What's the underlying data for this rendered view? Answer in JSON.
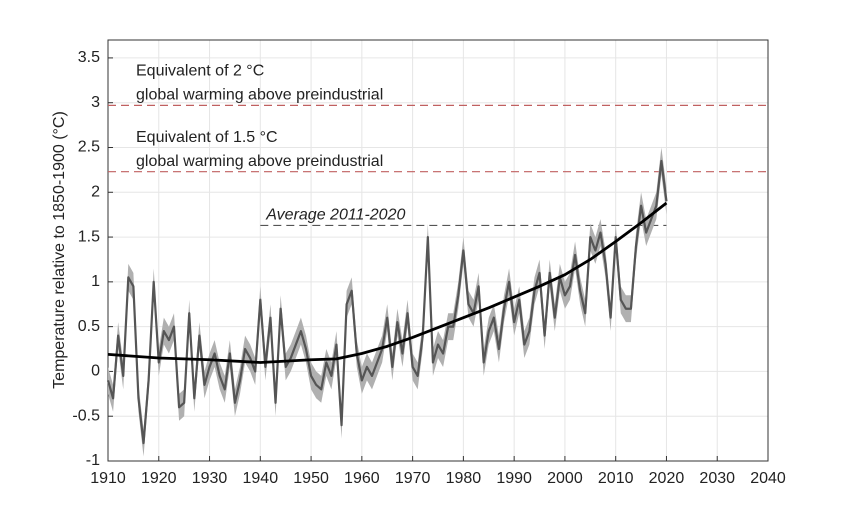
{
  "chart_data": {
    "type": "line",
    "ylabel": "Temperature relative to 1850-1900 (°C)",
    "xlim": [
      1910,
      2040
    ],
    "xticks": [
      1910,
      1920,
      1930,
      1940,
      1950,
      1960,
      1970,
      1980,
      1990,
      2000,
      2010,
      2020,
      2030,
      2040
    ],
    "ylim": [
      -1,
      3.7
    ],
    "yticks": [
      -1,
      -0.5,
      0,
      0.5,
      1,
      1.5,
      2,
      2.5,
      3,
      3.5
    ],
    "grid": true,
    "series": [
      {
        "color": "#555555",
        "band_color": "#b0b0b0",
        "error": 0.15,
        "x": [
          1910,
          1911,
          1912,
          1913,
          1914,
          1915,
          1916,
          1917,
          1918,
          1919,
          1920,
          1921,
          1922,
          1923,
          1924,
          1925,
          1926,
          1927,
          1928,
          1929,
          1930,
          1931,
          1932,
          1933,
          1934,
          1935,
          1936,
          1937,
          1938,
          1939,
          1940,
          1941,
          1942,
          1943,
          1944,
          1945,
          1946,
          1947,
          1948,
          1949,
          1950,
          1951,
          1952,
          1953,
          1954,
          1955,
          1956,
          1957,
          1958,
          1959,
          1960,
          1961,
          1962,
          1963,
          1964,
          1965,
          1966,
          1967,
          1968,
          1969,
          1970,
          1971,
          1972,
          1973,
          1974,
          1975,
          1976,
          1977,
          1978,
          1979,
          1980,
          1981,
          1982,
          1983,
          1984,
          1985,
          1986,
          1987,
          1988,
          1989,
          1990,
          1991,
          1992,
          1993,
          1994,
          1995,
          1996,
          1997,
          1998,
          1999,
          2000,
          2001,
          2002,
          2003,
          2004,
          2005,
          2006,
          2007,
          2008,
          2009,
          2010,
          2011,
          2012,
          2013,
          2014,
          2015,
          2016,
          2017,
          2018,
          2019,
          2020
        ],
        "values": [
          -0.1,
          -0.3,
          0.4,
          -0.05,
          1.05,
          0.95,
          -0.3,
          -0.8,
          -0.1,
          1.0,
          0.1,
          0.45,
          0.35,
          0.5,
          -0.4,
          -0.35,
          0.65,
          -0.3,
          0.4,
          -0.15,
          0.05,
          0.2,
          -0.05,
          -0.2,
          0.2,
          -0.35,
          -0.1,
          0.25,
          0.15,
          0.0,
          0.8,
          0.05,
          0.6,
          -0.35,
          0.7,
          0.05,
          0.15,
          0.3,
          0.45,
          0.25,
          -0.05,
          -0.15,
          -0.2,
          0.1,
          -0.05,
          0.3,
          -0.6,
          0.75,
          0.9,
          0.2,
          -0.1,
          0.05,
          -0.05,
          0.1,
          0.25,
          0.6,
          0.05,
          0.55,
          0.2,
          0.65,
          0.05,
          -0.05,
          0.4,
          1.5,
          0.1,
          0.3,
          0.2,
          0.5,
          0.5,
          0.85,
          1.35,
          0.75,
          0.65,
          0.95,
          0.1,
          0.45,
          0.6,
          0.25,
          0.7,
          1.0,
          0.55,
          0.8,
          0.3,
          0.45,
          0.9,
          1.1,
          0.4,
          1.1,
          0.6,
          1.05,
          0.85,
          0.95,
          1.3,
          0.9,
          0.65,
          1.5,
          1.35,
          1.55,
          1.2,
          0.6,
          1.5,
          0.8,
          0.7,
          0.7,
          1.4,
          1.85,
          1.55,
          1.7,
          1.85,
          2.35,
          1.9
        ]
      },
      {
        "color": "#000000",
        "x": [
          1910,
          1920,
          1930,
          1940,
          1950,
          1955,
          1960,
          1965,
          1970,
          1975,
          1980,
          1985,
          1990,
          1995,
          2000,
          2005,
          2010,
          2015,
          2020
        ],
        "values": [
          0.19,
          0.15,
          0.13,
          0.1,
          0.13,
          0.14,
          0.2,
          0.28,
          0.38,
          0.49,
          0.6,
          0.71,
          0.83,
          0.95,
          1.08,
          1.25,
          1.45,
          1.66,
          1.88
        ]
      }
    ],
    "reference_lines": [
      {
        "value": 2.97,
        "x_range": [
          1910,
          2040
        ],
        "color": "#c06060",
        "text_color": "#6b1a1a",
        "italic": false,
        "label_lines": [
          "Equivalent of 2 °C",
          "global warming above preindustrial"
        ]
      },
      {
        "value": 2.23,
        "x_range": [
          1910,
          2040
        ],
        "color": "#c06060",
        "text_color": "#6b1a1a",
        "italic": false,
        "label_lines": [
          "Equivalent of 1.5 °C",
          "global warming above preindustrial"
        ]
      },
      {
        "value": 1.63,
        "x_range": [
          1940,
          2020
        ],
        "color": "#555555",
        "text_color": "#000000",
        "italic": true,
        "label_lines": [
          "Average 2011-2020"
        ]
      }
    ]
  }
}
